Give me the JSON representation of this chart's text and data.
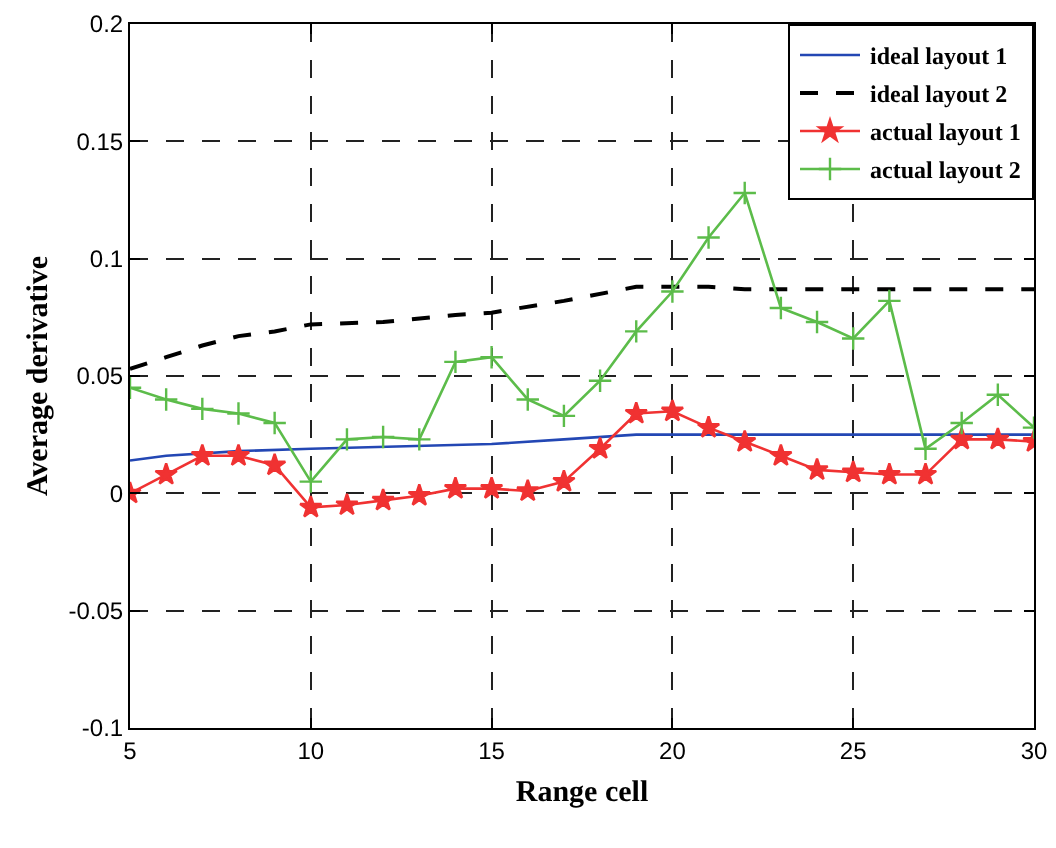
{
  "chart_data": {
    "type": "line",
    "xlabel": "Range cell",
    "ylabel": "Average derivative",
    "xlim": [
      5,
      30
    ],
    "ylim": [
      -0.1,
      0.2
    ],
    "xticks": [
      5,
      10,
      15,
      20,
      25,
      30
    ],
    "yticks": [
      -0.1,
      -0.05,
      0,
      0.05,
      0.1,
      0.15,
      0.2
    ],
    "grid": true,
    "legend": "top right",
    "series": [
      {
        "name": "ideal layout 1",
        "color": "#2347b4",
        "line_style": "solid",
        "marker": "none",
        "x": [
          5,
          6,
          8,
          10,
          15,
          17,
          19,
          30
        ],
        "values": [
          0.014,
          0.016,
          0.018,
          0.019,
          0.021,
          0.023,
          0.025,
          0.025
        ]
      },
      {
        "name": "ideal layout 2",
        "color": "#000000",
        "line_style": "dashed",
        "marker": "none",
        "x": [
          5,
          6,
          7,
          8,
          9,
          10,
          12,
          14,
          15,
          17,
          19,
          21,
          22,
          30
        ],
        "values": [
          0.053,
          0.058,
          0.063,
          0.067,
          0.069,
          0.072,
          0.073,
          0.076,
          0.077,
          0.082,
          0.088,
          0.088,
          0.087,
          0.087
        ]
      },
      {
        "name": "actual layout 1",
        "color": "#f03232",
        "line_style": "solid",
        "marker": "star",
        "x": [
          5,
          6,
          7,
          8,
          9,
          10,
          11,
          12,
          13,
          14,
          15,
          16,
          17,
          18,
          19,
          20,
          21,
          22,
          23,
          24,
          25,
          26,
          27,
          28,
          29,
          30
        ],
        "values": [
          0,
          0.008,
          0.016,
          0.016,
          0.012,
          -0.006,
          -0.005,
          -0.003,
          -0.001,
          0.002,
          0.002,
          0.001,
          0.005,
          0.019,
          0.034,
          0.035,
          0.028,
          0.022,
          0.016,
          0.01,
          0.009,
          0.008,
          0.008,
          0.023,
          0.023,
          0.022
        ]
      },
      {
        "name": "actual layout 2",
        "color": "#5cbc4a",
        "line_style": "solid",
        "marker": "cross",
        "x": [
          5,
          6,
          7,
          8,
          9,
          10,
          11,
          12,
          13,
          14,
          15,
          16,
          17,
          18,
          19,
          20,
          21,
          22,
          23,
          24,
          25,
          26,
          27,
          28,
          29,
          30
        ],
        "values": [
          0.045,
          0.04,
          0.036,
          0.034,
          0.03,
          0.005,
          0.023,
          0.024,
          0.023,
          0.056,
          0.058,
          0.04,
          0.033,
          0.048,
          0.069,
          0.086,
          0.109,
          0.128,
          0.079,
          0.073,
          0.066,
          0.082,
          0.019,
          0.03,
          0.042,
          0.028
        ]
      }
    ]
  }
}
